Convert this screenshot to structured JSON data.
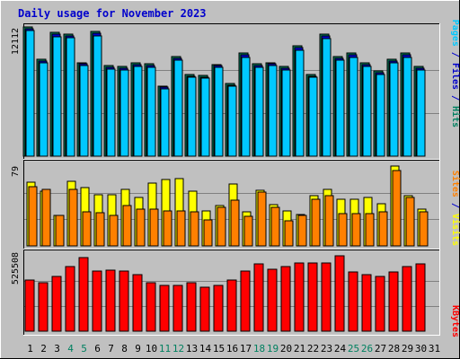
{
  "chart_data": [
    {
      "type": "bar",
      "title": "Daily usage for November 2023",
      "ylabel_parts": [
        {
          "text": "Pages",
          "color": "#00c8ff"
        },
        {
          "text": " / ",
          "color": "#0000cc"
        },
        {
          "text": "Files",
          "color": "#0000cc"
        },
        {
          "text": " / ",
          "color": "#0000cc"
        },
        {
          "text": "Hits",
          "color": "#008060"
        }
      ],
      "y_max_label": "12112",
      "ylim": [
        0,
        12112
      ],
      "grid": true,
      "categories": [
        "1",
        "2",
        "3",
        "4",
        "5",
        "6",
        "7",
        "8",
        "9",
        "10",
        "11",
        "12",
        "13",
        "14",
        "15",
        "16",
        "17",
        "18",
        "19",
        "20",
        "21",
        "22",
        "23",
        "24",
        "25",
        "26",
        "27",
        "28",
        "29",
        "30",
        "31"
      ],
      "weekend_categories": [
        "4",
        "5",
        "11",
        "12",
        "18",
        "19",
        "25",
        "26"
      ],
      "colors": {
        "hits": "#008060",
        "files": "#0000cc",
        "pages": "#00c8ff"
      },
      "series": [
        {
          "name": "Hits",
          "values": [
            12112,
            9066,
            11624,
            11472,
            8781,
            11720,
            8497,
            8370,
            8734,
            8622,
            6586,
            9326,
            7654,
            7568,
            8614,
            6794,
            9651,
            8669,
            8781,
            8427,
            10347,
            7654,
            11472,
            9326,
            9651,
            8732,
            7992,
            9066,
            9651,
            8370,
            null
          ]
        },
        {
          "name": "Files",
          "values": [
            11950,
            8910,
            11420,
            11300,
            8630,
            11520,
            8350,
            8230,
            8580,
            8470,
            6470,
            9160,
            7520,
            7430,
            8460,
            6670,
            9480,
            8510,
            8630,
            8280,
            10160,
            7520,
            11270,
            9160,
            9480,
            8570,
            7850,
            8910,
            9480,
            8220,
            null
          ]
        },
        {
          "name": "Pages",
          "values": [
            11750,
            8720,
            11200,
            11100,
            8460,
            11300,
            8180,
            8060,
            8400,
            8300,
            6340,
            8980,
            7370,
            7290,
            8290,
            6540,
            9290,
            8340,
            8460,
            8110,
            9960,
            7370,
            11050,
            8980,
            9290,
            8400,
            7690,
            8720,
            9290,
            8060,
            null
          ]
        }
      ]
    },
    {
      "type": "bar",
      "ylabel_parts": [
        {
          "text": "Sites",
          "color": "#ff8000"
        },
        {
          "text": " / ",
          "color": "#0000cc"
        },
        {
          "text": "Visits",
          "color": "#ffff00"
        }
      ],
      "y_max_label": "79",
      "ylim": [
        0,
        79
      ],
      "grid": true,
      "colors": {
        "visits": "#ffff00",
        "sites": "#ff8000"
      },
      "series": [
        {
          "name": "Visits",
          "values": [
            63,
            54,
            30,
            64,
            58,
            51,
            51,
            56,
            48,
            62,
            66,
            67,
            54,
            35,
            40,
            61,
            34,
            55,
            41,
            35,
            31,
            50,
            56,
            46,
            46,
            48,
            42,
            79,
            50,
            36,
            null
          ]
        },
        {
          "name": "Sites",
          "values": [
            59,
            56,
            30,
            56,
            34,
            33,
            30,
            40,
            36,
            36,
            35,
            35,
            34,
            26,
            38,
            45,
            29,
            53,
            38,
            25,
            30,
            46,
            50,
            32,
            32,
            32,
            34,
            75,
            48,
            34,
            null
          ]
        }
      ]
    },
    {
      "type": "bar",
      "ylabel_parts": [
        {
          "text": "KBytes",
          "color": "#ff0000"
        }
      ],
      "y_max_label": "525508",
      "ylim": [
        0,
        525508
      ],
      "grid": true,
      "colors": {
        "kbytes": "#ff0000"
      },
      "series": [
        {
          "name": "KBytes",
          "values": [
            355000,
            339000,
            384000,
            450000,
            513000,
            418000,
            423000,
            418000,
            395000,
            339000,
            322000,
            322000,
            339000,
            306000,
            322000,
            355000,
            418000,
            467000,
            434000,
            450000,
            478000,
            473000,
            478000,
            525508,
            411000,
            395000,
            384000,
            411000,
            450000,
            467000,
            null
          ]
        }
      ]
    }
  ]
}
